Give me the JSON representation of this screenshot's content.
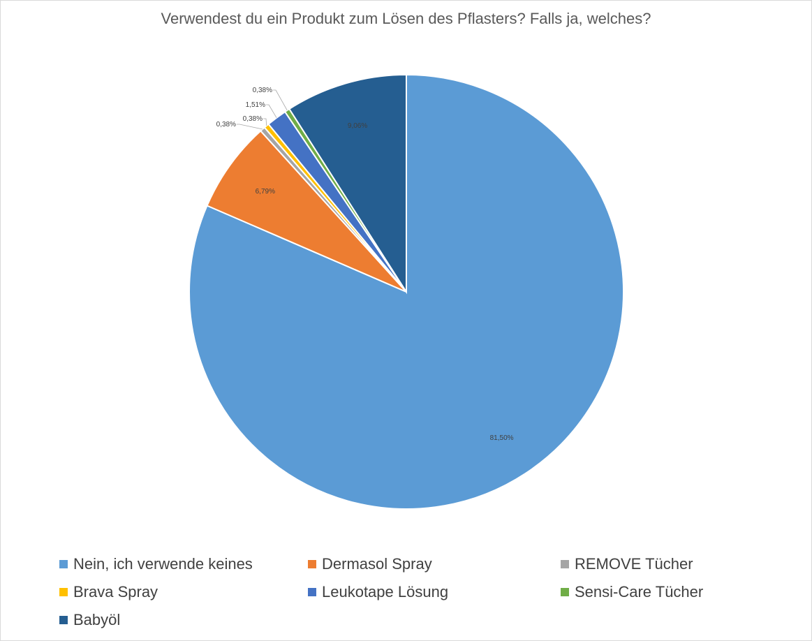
{
  "chart_data": {
    "type": "pie",
    "title": "Verwendest du ein Produkt zum Lösen des Pflasters? Falls ja, welches?",
    "categories": [
      "Nein, ich verwende keines",
      "Dermasol Spray",
      "REMOVE Tücher",
      "Brava Spray",
      "Leukotape Lösung",
      "Sensi-Care Tücher",
      "Babyöl"
    ],
    "values": [
      81.5,
      6.79,
      0.38,
      0.38,
      1.51,
      0.38,
      9.06
    ],
    "labels": [
      "81,50%",
      "6,79%",
      "0,38%",
      "0,38%",
      "1,51%",
      "0,38%",
      "9,06%"
    ],
    "colors": [
      "#5b9bd5",
      "#ed7d31",
      "#a5a5a5",
      "#ffc000",
      "#4472c4",
      "#70ad47",
      "#255e91"
    ],
    "legend_position": "bottom"
  }
}
